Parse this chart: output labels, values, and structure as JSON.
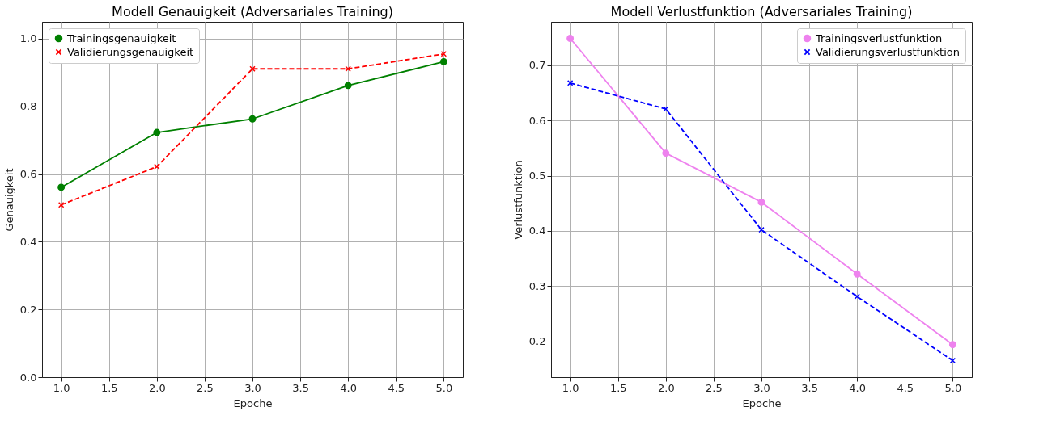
{
  "chart_data": [
    {
      "type": "line",
      "title": "Modell Genauigkeit (Adversariales Training)",
      "xlabel": "Epoche",
      "ylabel": "Genauigkeit",
      "x": [
        1,
        2,
        3,
        4,
        5
      ],
      "xlim": [
        0.8,
        5.2
      ],
      "xticks": [
        {
          "value": 1,
          "label": "1.0"
        },
        1.5,
        {
          "value": 2,
          "label": "2.0"
        },
        2.5,
        {
          "value": 3,
          "label": "3.0"
        },
        3.5,
        {
          "value": 4,
          "label": "4.0"
        },
        4.5,
        {
          "value": 5,
          "label": "5.0"
        }
      ],
      "ylim": [
        0,
        1.05
      ],
      "yticks": [
        {
          "value": 0,
          "label": "0.0"
        },
        0.2,
        0.4,
        0.6,
        0.8,
        {
          "value": 1,
          "label": "1.0"
        }
      ],
      "grid": true,
      "legend": "top left",
      "series": [
        {
          "name": "Trainingsgenauigkeit",
          "color": "#008000",
          "marker": "circle",
          "line_style": "solid",
          "values": [
            0.561,
            0.723,
            0.763,
            0.862,
            0.932
          ]
        },
        {
          "name": "Validierungsgenauigkeit",
          "color": "#ff0000",
          "marker": "cross",
          "line_style": "dashed",
          "values": [
            0.509,
            0.622,
            0.911,
            0.911,
            0.955
          ]
        }
      ]
    },
    {
      "type": "line",
      "title": "Modell Verlustfunktion (Adversariales Training)",
      "xlabel": "Epoche",
      "ylabel": "Verlustfunktion",
      "x": [
        1,
        2,
        3,
        4,
        5
      ],
      "xlim": [
        0.8,
        5.2
      ],
      "xticks": [
        {
          "value": 1,
          "label": "1.0"
        },
        1.5,
        {
          "value": 2,
          "label": "2.0"
        },
        2.5,
        {
          "value": 3,
          "label": "3.0"
        },
        3.5,
        {
          "value": 4,
          "label": "4.0"
        },
        4.5,
        {
          "value": 5,
          "label": "5.0"
        }
      ],
      "ylim": [
        0.135,
        0.779
      ],
      "yticks": [
        0.2,
        0.3,
        0.4,
        0.5,
        0.6,
        0.7
      ],
      "grid": true,
      "legend": "top right",
      "series": [
        {
          "name": "Trainingsverlustfunktion",
          "color": "#ee82ee",
          "marker": "circle",
          "line_style": "solid",
          "values": [
            0.749,
            0.541,
            0.452,
            0.322,
            0.194
          ]
        },
        {
          "name": "Validierungsverlustfunktion",
          "color": "#0000ff",
          "marker": "cross",
          "line_style": "dashed",
          "values": [
            0.668,
            0.621,
            0.402,
            0.281,
            0.165
          ]
        }
      ]
    }
  ]
}
